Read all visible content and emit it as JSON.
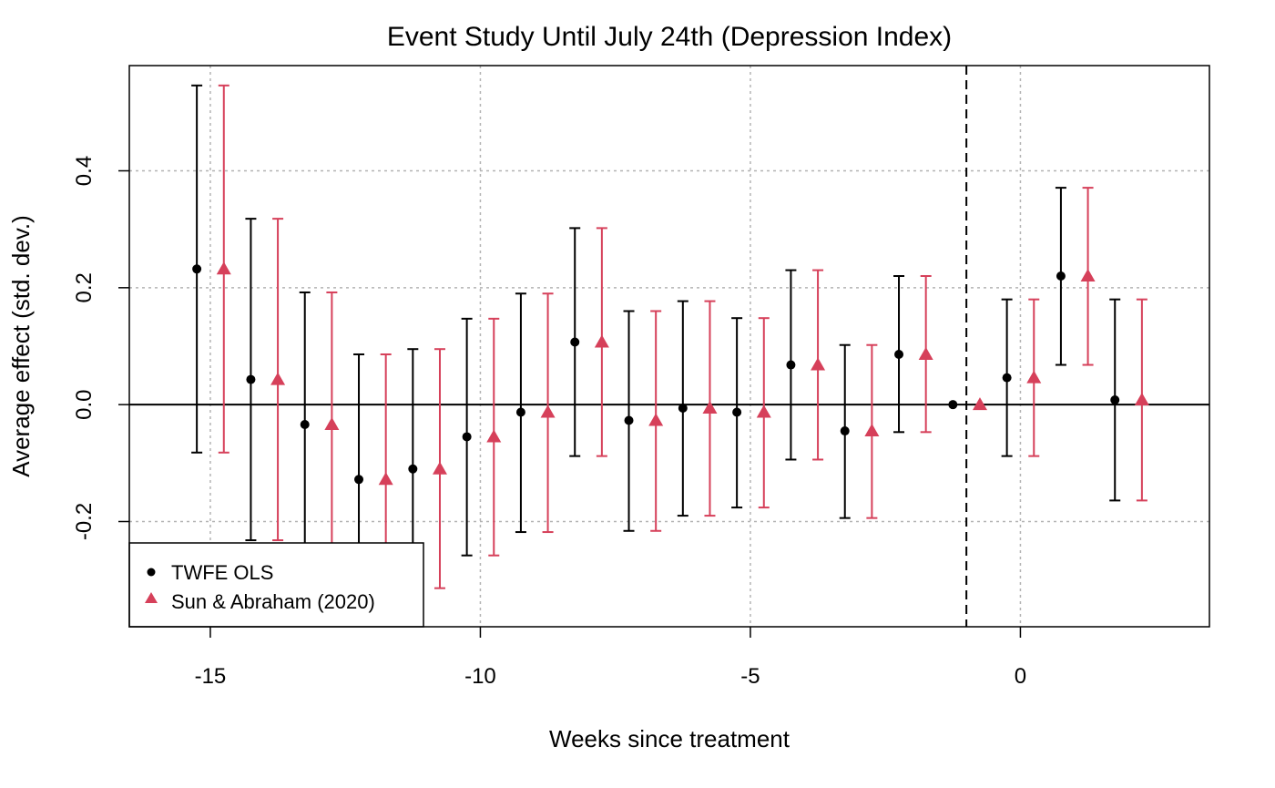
{
  "chart_data": {
    "type": "scatter",
    "title": "Event Study Until July 24th (Depression Index)",
    "xlabel": "Weeks since treatment",
    "ylabel": "Average effect (std. dev.)",
    "xlim": [
      -16.5,
      3.5
    ],
    "ylim": [
      -0.38,
      0.58
    ],
    "x_ticks": [
      -15,
      -10,
      -5,
      0
    ],
    "x_tick_labels": [
      "-15",
      "-10",
      "-5",
      "0"
    ],
    "y_ticks": [
      -0.2,
      0.0,
      0.2,
      0.4
    ],
    "y_tick_labels": [
      "-0.2",
      "0.0",
      "0.2",
      "0.4"
    ],
    "grid": true,
    "reference_vline_x": -1,
    "reference_hline_y": 0,
    "legend_position": "bottom-left",
    "series": [
      {
        "name": "TWFE OLS",
        "color": "#000000",
        "marker": "circle",
        "x": [
          -15.25,
          -14.25,
          -13.25,
          -12.25,
          -11.25,
          -10.25,
          -9.25,
          -8.25,
          -7.25,
          -6.25,
          -5.25,
          -4.25,
          -3.25,
          -2.25,
          -1.25,
          -0.25,
          0.75,
          1.75
        ],
        "y": [
          0.232,
          0.043,
          -0.034,
          -0.128,
          -0.11,
          -0.055,
          -0.013,
          0.107,
          -0.027,
          -0.006,
          -0.013,
          0.068,
          -0.045,
          0.086,
          0.0,
          0.046,
          0.22,
          0.008
        ],
        "lower": [
          -0.082,
          -0.232,
          -0.26,
          -0.342,
          -0.314,
          -0.258,
          -0.218,
          -0.088,
          -0.216,
          -0.19,
          -0.176,
          -0.094,
          -0.194,
          -0.047,
          null,
          -0.088,
          0.068,
          -0.164
        ],
        "upper": [
          0.546,
          0.318,
          0.192,
          0.086,
          0.095,
          0.147,
          0.19,
          0.302,
          0.16,
          0.177,
          0.148,
          0.23,
          0.102,
          0.22,
          null,
          0.18,
          0.371,
          0.18
        ]
      },
      {
        "name": "Sun & Abraham (2020)",
        "color": "#d6405a",
        "marker": "triangle",
        "x": [
          -14.75,
          -13.75,
          -12.75,
          -11.75,
          -10.75,
          -9.75,
          -8.75,
          -7.75,
          -6.75,
          -5.75,
          -4.75,
          -3.75,
          -2.75,
          -1.75,
          -0.75,
          0.25,
          1.25,
          2.25
        ],
        "y": [
          0.232,
          0.043,
          -0.034,
          -0.128,
          -0.11,
          -0.055,
          -0.013,
          0.107,
          -0.027,
          -0.006,
          -0.013,
          0.068,
          -0.045,
          0.086,
          0.0,
          0.046,
          0.22,
          0.008
        ],
        "lower": [
          -0.082,
          -0.232,
          -0.26,
          -0.342,
          -0.314,
          -0.258,
          -0.218,
          -0.088,
          -0.216,
          -0.19,
          -0.176,
          -0.094,
          -0.194,
          -0.047,
          null,
          -0.088,
          0.068,
          -0.164
        ],
        "upper": [
          0.546,
          0.318,
          0.192,
          0.086,
          0.095,
          0.147,
          0.19,
          0.302,
          0.16,
          0.177,
          0.148,
          0.23,
          0.102,
          0.22,
          null,
          0.18,
          0.371,
          0.18
        ]
      }
    ]
  }
}
